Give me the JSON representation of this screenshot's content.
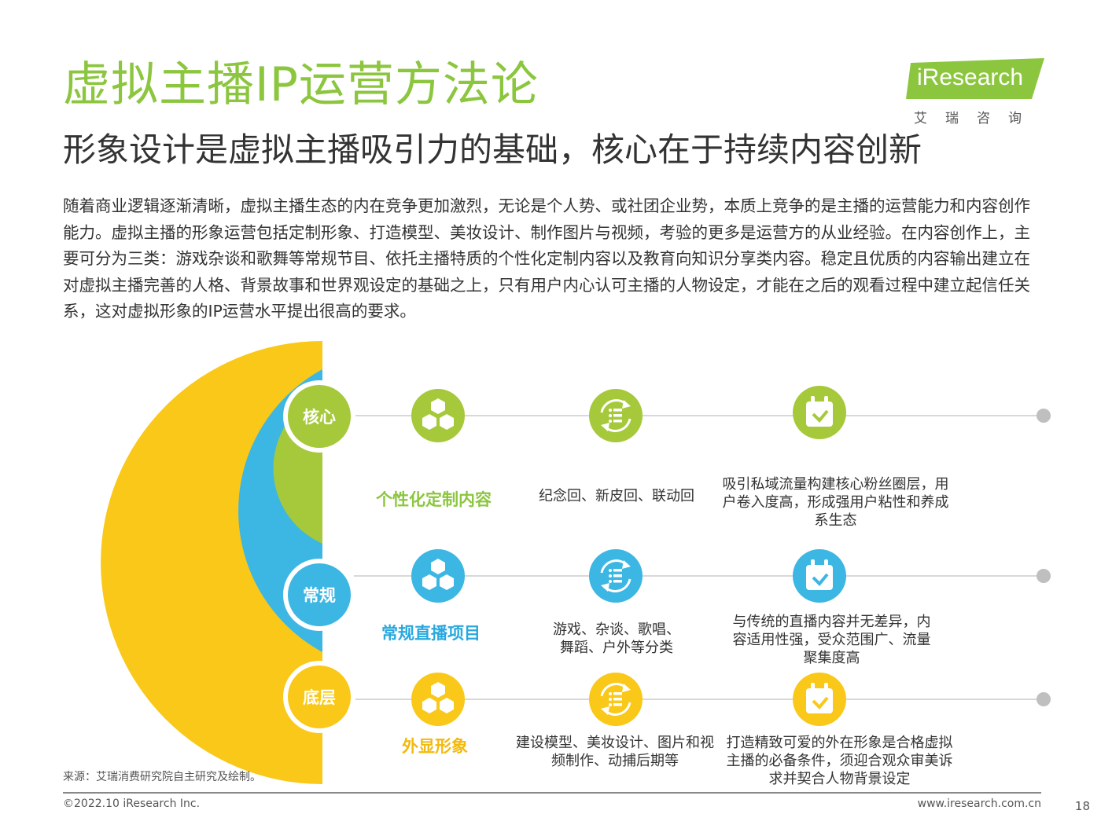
{
  "title": "虚拟主播IP运营方法论",
  "subtitle": "形象设计是虚拟主播吸引力的基础，核心在于持续内容创新",
  "logo": {
    "brand": "iResearch",
    "cn": "艾瑞咨询"
  },
  "body_paragraph": "随着商业逻辑逐渐清晰，虚拟主播生态的内在竞争更加激烈，无论是个人势、或社团企业势，本质上竞争的是主播的运营能力和内容创作能力。虚拟主播的形象运营包括定制形象、打造模型、美妆设计、制作图片与视频，考验的更多是运营方的从业经验。在内容创作上，主要可分为三类：游戏杂谈和歌舞等常规节目、依托主播特质的个性化定制内容以及教育向知识分享类内容。稳定且优质的内容输出建立在对虚拟主播完善的人格、背景故事和世界观设定的基础之上，只有用户内心认可主播的人物设定，才能在之后的观看过程中建立起信任关系，这对虚拟形象的IP运营水平提出很高的要求。",
  "colors": {
    "core": "#a6c93b",
    "regular": "#3cb6e3",
    "base": "#f9c818",
    "title_green": "#8cc63f",
    "line_gray": "#cccccc",
    "dot_gray": "#bfbfbf"
  },
  "layers": [
    {
      "tag": "核心",
      "label": "个性化定制内容",
      "examples": "纪念回、新皮回、联动回",
      "value": "吸引私域流量构建核心粉丝圈层，用户卷入度高，形成强用户粘性和养成系生态",
      "color": "#a6c93b",
      "text_color": "#8cc63f"
    },
    {
      "tag": "常规",
      "label": "常规直播项目",
      "examples": "游戏、杂谈、歌唱、舞蹈、户外等分类",
      "value": "与传统的直播内容并无差异，内容适用性强，受众范围广、流量聚集度高",
      "color": "#3cb6e3",
      "text_color": "#29a8de"
    },
    {
      "tag": "底层",
      "label": "外显形象",
      "examples": "建设模型、美妆设计、图片和视频制作、动捕后期等",
      "value": "打造精致可爱的外在形象是合格虚拟主播的必备条件，须迎合观众审美诉求并契合人物背景设定",
      "color": "#f9c818",
      "text_color": "#f2b90f"
    }
  ],
  "icons": [
    "cubes-icon",
    "list-cycle-icon",
    "calendar-check-icon"
  ],
  "source": "来源：艾瑞消费研究院自主研究及绘制。",
  "copyright": "©2022.10 iResearch Inc.",
  "url": "www.iresearch.com.cn",
  "page_number": "18"
}
